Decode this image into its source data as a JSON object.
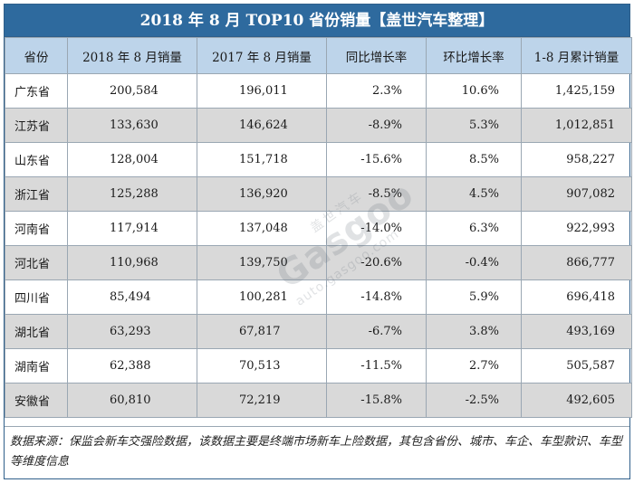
{
  "title": "2018 年 8 月 TOP10 省份销量【盖世汽车整理】",
  "headers": [
    "省份",
    "2018 年 8 月销量",
    "2017 年 8 月销量",
    "同比增长率",
    "环比增长率",
    "1-8 月累计销量"
  ],
  "rows": [
    {
      "province": "广东省",
      "aug2018": "200,584",
      "aug2017": "196,011",
      "yoy": "2.3%",
      "mom": "10.6%",
      "ytd": "1,425,159"
    },
    {
      "province": "江苏省",
      "aug2018": "133,630",
      "aug2017": "146,624",
      "yoy": "-8.9%",
      "mom": "5.3%",
      "ytd": "1,012,851"
    },
    {
      "province": "山东省",
      "aug2018": "128,004",
      "aug2017": "151,718",
      "yoy": "-15.6%",
      "mom": "8.5%",
      "ytd": "958,227"
    },
    {
      "province": "浙江省",
      "aug2018": "125,288",
      "aug2017": "136,920",
      "yoy": "-8.5%",
      "mom": "4.5%",
      "ytd": "907,082"
    },
    {
      "province": "河南省",
      "aug2018": "117,914",
      "aug2017": "137,048",
      "yoy": "-14.0%",
      "mom": "6.3%",
      "ytd": "922,993"
    },
    {
      "province": "河北省",
      "aug2018": "110,968",
      "aug2017": "139,750",
      "yoy": "-20.6%",
      "mom": "-0.4%",
      "ytd": "866,777"
    },
    {
      "province": "四川省",
      "aug2018": "85,494",
      "aug2017": "100,281",
      "yoy": "-14.8%",
      "mom": "5.9%",
      "ytd": "696,418"
    },
    {
      "province": "湖北省",
      "aug2018": "63,293",
      "aug2017": "67,817",
      "yoy": "-6.7%",
      "mom": "3.8%",
      "ytd": "493,169"
    },
    {
      "province": "湖南省",
      "aug2018": "62,388",
      "aug2017": "70,513",
      "yoy": "-11.5%",
      "mom": "2.7%",
      "ytd": "505,587"
    },
    {
      "province": "安徽省",
      "aug2018": "60,810",
      "aug2017": "72,219",
      "yoy": "-15.8%",
      "mom": "-2.5%",
      "ytd": "492,605"
    }
  ],
  "footnote": "数据来源：保监会新车交强险数据，该数据主要是终端市场新车上险数据，其包含省份、城市、车企、车型款识、车型等维度信息",
  "watermark": {
    "brand": "Gasgoo",
    "domain": "auto.gasgoo.com",
    "cn": "盖世汽车"
  },
  "colors": {
    "title_bg": "#2e6a9e",
    "header_bg": "#bdd4ea",
    "alt_row_bg": "#d9d9d9"
  }
}
